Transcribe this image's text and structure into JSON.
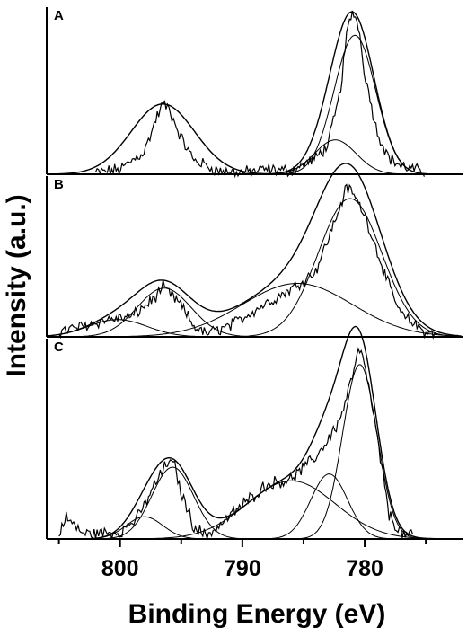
{
  "chart_data": {
    "type": "line",
    "xlabel": "Binding Energy (eV)",
    "ylabel": "Intensity (a.u.)",
    "xlim": [
      806,
      772
    ],
    "x_reversed": true,
    "xticks": [
      800,
      790,
      780
    ],
    "panels": [
      {
        "label": "A",
        "ylim": [
          0,
          100
        ],
        "baseline": 0,
        "components": [
          {
            "center": 796.5,
            "height": 43,
            "width": 2.6
          },
          {
            "center": 780.8,
            "height": 85,
            "width": 1.7
          },
          {
            "center": 782.4,
            "height": 21,
            "width": 1.7
          }
        ],
        "series": [
          {
            "kind": "raw",
            "x": [
              802,
              800,
              798,
              797,
              796.5,
              796,
              795,
              794,
              792,
              790,
              788,
              786,
              784,
              783,
              782,
              781.5,
              781,
              780.5,
              780,
              779,
              778,
              777,
              776,
              775
            ],
            "y": [
              1,
              3,
              14,
              35,
              43,
              40,
              22,
              9,
              2,
              1,
              3,
              2,
              10,
              18,
              50,
              84,
              100,
              91,
              62,
              26,
              10,
              5,
              3,
              1
            ]
          }
        ]
      },
      {
        "label": "B",
        "ylim": [
          0,
          100
        ],
        "baseline": 0,
        "components": [
          {
            "center": 800.2,
            "height": 11,
            "width": 2.4
          },
          {
            "center": 796.4,
            "height": 31,
            "width": 2.2
          },
          {
            "center": 785.5,
            "height": 34,
            "width": 4.5
          },
          {
            "center": 781.2,
            "height": 88,
            "width": 2.6
          }
        ],
        "series": [
          {
            "kind": "raw",
            "x": [
              805,
              803,
              801,
              799,
              797,
              796.5,
              795,
              794,
              793,
              791,
              789,
              787,
              785.5,
              784,
              783,
              782,
              781.5,
              781,
              780,
              779,
              778,
              777,
              775,
              774
            ],
            "y": [
              3,
              7,
              11,
              13,
              26,
              32,
              20,
              7,
              2,
              7,
              17,
              26,
              33,
              42,
              62,
              83,
              95,
              92,
              78,
              55,
              32,
              14,
              3,
              1
            ]
          }
        ]
      },
      {
        "label": "C",
        "ylim": [
          0,
          115
        ],
        "baseline": 0,
        "components": [
          {
            "center": 798.0,
            "height": 13,
            "width": 1.5
          },
          {
            "center": 795.7,
            "height": 42,
            "width": 1.7
          },
          {
            "center": 786.0,
            "height": 34,
            "width": 3.6
          },
          {
            "center": 782.9,
            "height": 38,
            "width": 1.5
          },
          {
            "center": 780.4,
            "height": 102,
            "width": 1.4
          }
        ],
        "series": [
          {
            "kind": "raw",
            "x": [
              805,
              804.5,
              803,
              800,
              798.5,
              797,
              796,
              795.5,
              795,
              794,
              793,
              792,
              790,
              788,
              786,
              784,
              783,
              782,
              781,
              780.5,
              780,
              779,
              778,
              777,
              776
            ],
            "y": [
              2,
              13,
              3,
              4,
              13,
              34,
              46,
              42,
              27,
              8,
              2,
              7,
              20,
              32,
              35,
              48,
              58,
              70,
              95,
              110,
              103,
              60,
              14,
              3,
              1
            ]
          }
        ]
      }
    ]
  }
}
